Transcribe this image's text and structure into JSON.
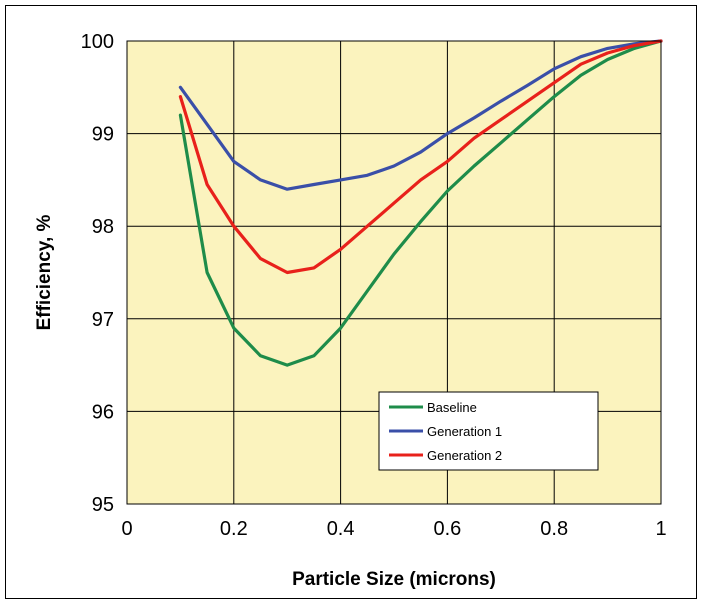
{
  "chart_data": {
    "type": "line",
    "title": "",
    "xlabel": "Particle Size (microns)",
    "ylabel": "Efficiency, %",
    "xlim": [
      0,
      1
    ],
    "ylim": [
      95,
      100
    ],
    "xticks": [
      "0",
      "0.2",
      "0.4",
      "0.6",
      "0.8",
      "1"
    ],
    "yticks": [
      "95",
      "96",
      "97",
      "98",
      "99",
      "100"
    ],
    "grid": true,
    "legend_position": "bottom-right",
    "plot_background": "#FBF3BE",
    "series": [
      {
        "name": "Baseline",
        "color": "#1E8C4A",
        "x": [
          0.1,
          0.15,
          0.2,
          0.25,
          0.3,
          0.35,
          0.4,
          0.45,
          0.5,
          0.55,
          0.6,
          0.65,
          0.7,
          0.75,
          0.8,
          0.85,
          0.9,
          0.95,
          1.0
        ],
        "y": [
          99.2,
          97.5,
          96.9,
          96.6,
          96.5,
          96.6,
          96.9,
          97.3,
          97.7,
          98.05,
          98.38,
          98.65,
          98.9,
          99.15,
          99.4,
          99.63,
          99.8,
          99.92,
          100.0
        ]
      },
      {
        "name": "Generation 1",
        "color": "#3A4FA8",
        "x": [
          0.1,
          0.15,
          0.2,
          0.25,
          0.3,
          0.35,
          0.4,
          0.45,
          0.5,
          0.55,
          0.6,
          0.65,
          0.7,
          0.75,
          0.8,
          0.85,
          0.9,
          0.95,
          1.0
        ],
        "y": [
          99.5,
          99.1,
          98.7,
          98.5,
          98.4,
          98.45,
          98.5,
          98.55,
          98.65,
          98.8,
          99.0,
          99.17,
          99.35,
          99.52,
          99.7,
          99.83,
          99.92,
          99.97,
          100.0
        ]
      },
      {
        "name": "Generation 2",
        "color": "#E8211B",
        "x": [
          0.1,
          0.15,
          0.2,
          0.25,
          0.3,
          0.35,
          0.4,
          0.45,
          0.5,
          0.55,
          0.6,
          0.65,
          0.7,
          0.75,
          0.8,
          0.85,
          0.9,
          0.95,
          1.0
        ],
        "y": [
          99.4,
          98.45,
          98.0,
          97.65,
          97.5,
          97.55,
          97.75,
          98.0,
          98.25,
          98.5,
          98.7,
          98.95,
          99.15,
          99.35,
          99.55,
          99.75,
          99.87,
          99.95,
          100.0
        ]
      }
    ]
  }
}
